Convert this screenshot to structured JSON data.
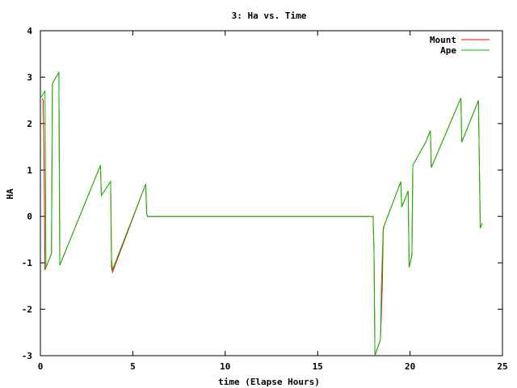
{
  "chart_data": {
    "type": "line",
    "title": "3: Ha vs. Time",
    "xlabel": "time (Elapse Hours)",
    "ylabel": "HA",
    "xlim": [
      0,
      25
    ],
    "ylim": [
      -3,
      4
    ],
    "xticks": [
      0,
      5,
      10,
      15,
      20,
      25
    ],
    "yticks": [
      -3,
      -2,
      -1,
      0,
      1,
      2,
      3,
      4
    ],
    "grid": false,
    "legend_position": "top-right",
    "series": [
      {
        "name": "Mount",
        "color": "#ff0000",
        "x": [
          0.1,
          0.15,
          0.2,
          0.25,
          0.3,
          0.4,
          0.6,
          0.65,
          0.7,
          1.0,
          1.05,
          3.25,
          3.3,
          3.8,
          3.85,
          3.9,
          5.7,
          5.75,
          5.8,
          18.0,
          18.05,
          18.1,
          18.4,
          18.5,
          18.55,
          18.6,
          19.5,
          19.55,
          19.9,
          19.95,
          20.1,
          20.15,
          20.85,
          21.1,
          21.15,
          22.75,
          22.8,
          23.7,
          23.75,
          23.8,
          23.9
        ],
        "y": [
          2.55,
          2.5,
          1.15,
          -1.15,
          -1.1,
          -1.0,
          -0.8,
          2.85,
          2.9,
          3.1,
          -1.05,
          1.1,
          0.45,
          0.75,
          -1.1,
          -1.2,
          0.7,
          0.05,
          0.0,
          0.0,
          -0.75,
          -3.0,
          -2.65,
          -1.45,
          -0.3,
          -0.2,
          0.75,
          0.2,
          0.55,
          -1.1,
          -0.85,
          1.1,
          1.6,
          1.85,
          1.05,
          2.55,
          1.6,
          2.5,
          1.15,
          -0.25,
          -0.15
        ]
      },
      {
        "name": "Ape",
        "color": "#00c000",
        "x": [
          0.0,
          0.25,
          0.3,
          0.4,
          0.6,
          0.65,
          0.7,
          1.0,
          1.05,
          3.25,
          3.3,
          3.8,
          3.85,
          3.9,
          5.7,
          5.75,
          5.8,
          18.0,
          18.05,
          18.1,
          18.4,
          18.45,
          18.55,
          18.6,
          19.5,
          19.55,
          19.9,
          19.95,
          20.1,
          20.15,
          20.85,
          21.1,
          21.15,
          22.75,
          22.8,
          23.7,
          23.75,
          23.8,
          23.9
        ],
        "y": [
          2.55,
          2.7,
          -1.1,
          -1.0,
          -0.8,
          2.85,
          2.9,
          3.1,
          -1.05,
          1.1,
          0.45,
          0.75,
          -0.9,
          -1.15,
          0.7,
          0.05,
          0.0,
          0.0,
          -0.75,
          -3.0,
          -2.65,
          -1.5,
          -0.25,
          -0.2,
          0.75,
          0.2,
          0.55,
          -1.1,
          -0.85,
          1.1,
          1.6,
          1.85,
          1.05,
          2.55,
          1.6,
          2.5,
          1.15,
          -0.25,
          -0.15
        ]
      }
    ]
  }
}
